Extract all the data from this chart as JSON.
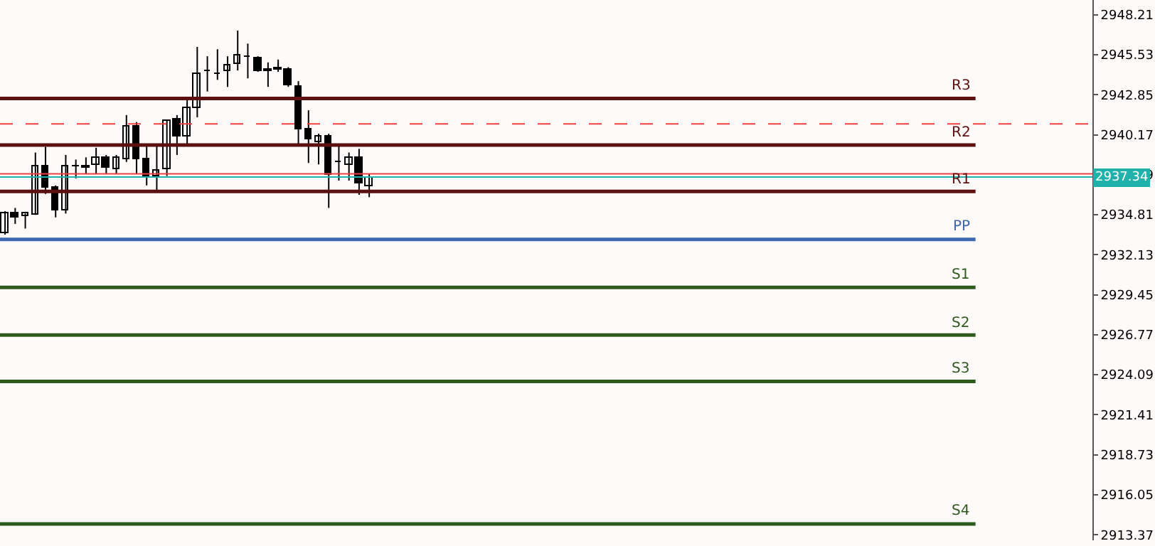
{
  "chart_data": {
    "type": "candlestick",
    "categories": [
      null,
      null,
      null,
      null,
      null,
      null,
      null,
      null,
      null,
      null,
      null,
      null,
      null,
      null,
      null,
      null,
      null,
      null,
      null,
      null,
      null,
      null,
      null,
      null,
      null,
      null,
      null,
      null,
      null,
      null,
      null,
      null,
      null,
      null,
      null,
      null,
      null,
      null,
      null,
      null,
      null,
      null,
      null,
      null,
      null,
      null,
      null,
      null,
      null,
      null,
      null,
      null,
      null,
      null,
      null,
      null,
      null,
      null,
      null,
      null,
      null,
      null,
      null,
      null,
      null,
      null,
      null,
      null,
      null,
      null,
      null,
      null,
      null,
      null,
      null,
      null,
      null,
      null,
      null,
      null,
      null,
      null,
      null,
      null,
      null,
      null,
      null,
      null,
      null,
      null,
      null,
      null,
      null,
      null,
      null,
      null,
      null,
      null,
      null,
      null,
      null,
      null,
      null,
      null,
      null,
      null,
      null,
      null
    ],
    "ohlc": [
      [
        2933.57,
        2935.05,
        2933.48,
        2934.89
      ],
      [
        2934.89,
        2935.27,
        2934.2,
        2934.64
      ],
      [
        2934.7,
        2934.89,
        2933.89,
        2934.89
      ],
      [
        2934.83,
        2938.98,
        2934.8,
        2938.04
      ],
      [
        2938.04,
        2939.36,
        2936.21,
        2936.59
      ],
      [
        2936.59,
        2936.78,
        2934.64,
        2935.14
      ],
      [
        2935.14,
        2938.82,
        2934.89,
        2938.04
      ],
      [
        2938.04,
        2938.51,
        2937.25,
        2938.1
      ],
      [
        2938.0,
        2938.66,
        2937.57,
        2938.04
      ],
      [
        2938.16,
        2939.3,
        2937.57,
        2938.66
      ],
      [
        2938.61,
        2938.82,
        2937.57,
        2937.97
      ],
      [
        2937.85,
        2938.82,
        2937.57,
        2938.61
      ],
      [
        2938.51,
        2941.49,
        2938.35,
        2940.71
      ],
      [
        2940.71,
        2941.02,
        2937.57,
        2938.57
      ],
      [
        2938.51,
        2939.45,
        2936.78,
        2937.41
      ],
      [
        2937.41,
        2939.45,
        2936.46,
        2937.79
      ],
      [
        2937.88,
        2941.18,
        2937.41,
        2941.12
      ],
      [
        2941.18,
        2941.49,
        2938.82,
        2940.08
      ],
      [
        2940.08,
        2942.6,
        2939.45,
        2941.96
      ],
      [
        2941.96,
        2946.06,
        2941.34,
        2944.27
      ],
      [
        2944.4,
        2945.43,
        2943.07,
        2944.48
      ],
      [
        2944.27,
        2945.9,
        2943.85,
        2944.2
      ],
      [
        2944.42,
        2945.43,
        2943.38,
        2944.8
      ],
      [
        2944.89,
        2947.15,
        2944.48,
        2945.52
      ],
      [
        2945.4,
        2946.28,
        2943.95,
        2945.43
      ],
      [
        2945.33,
        2945.43,
        2944.39,
        2944.48
      ],
      [
        2944.5,
        2945.02,
        2943.38,
        2944.45
      ],
      [
        2944.6,
        2945.21,
        2944.39,
        2944.58
      ],
      [
        2944.58,
        2944.7,
        2943.38,
        2943.45
      ],
      [
        2943.38,
        2943.76,
        2939.55,
        2940.49
      ],
      [
        2940.49,
        2941.81,
        2938.28,
        2939.86
      ],
      [
        2939.67,
        2940.24,
        2938.19,
        2940.08
      ],
      [
        2940.08,
        2940.24,
        2935.27,
        2937.47
      ],
      [
        2938.35,
        2939.45,
        2937.1,
        2938.3
      ],
      [
        2938.19,
        2938.98,
        2937.1,
        2938.61
      ],
      [
        2938.61,
        2939.23,
        2936.15,
        2936.94
      ],
      [
        2936.72,
        2937.57,
        2935.99,
        2937.34
      ],
      null,
      null,
      null,
      null,
      null,
      null,
      null,
      null,
      null,
      null,
      null,
      null,
      null,
      null,
      null,
      null,
      null,
      null,
      null,
      null,
      null,
      null,
      null,
      null,
      null,
      null,
      null,
      null,
      null,
      null,
      null,
      null,
      null,
      null,
      null,
      null,
      null,
      null,
      null,
      null,
      null,
      null,
      null,
      null,
      null,
      null,
      null,
      null,
      null,
      null,
      null,
      null,
      null,
      null,
      null,
      null,
      null,
      null,
      null,
      null,
      null,
      null,
      null,
      null,
      null,
      null,
      null,
      null,
      null,
      null,
      null
    ],
    "ylim": [
      2913.0,
      2949.2
    ],
    "yticks": [
      2948.21,
      2945.53,
      2942.85,
      2940.17,
      2937.49,
      2934.81,
      2932.13,
      2929.45,
      2926.77,
      2924.09,
      2921.41,
      2918.73,
      2916.05,
      2913.37
    ],
    "tick_labels": "y",
    "ref_lines": [
      {
        "axis": "y",
        "value": 2942.6,
        "label": "R3",
        "color": "#5c1010",
        "line_style": "solid"
      },
      {
        "axis": "y",
        "value": 2939.48,
        "label": "R2",
        "color": "#5c1010",
        "line_style": "solid"
      },
      {
        "axis": "y",
        "value": 2936.37,
        "label": "R1",
        "color": "#5c1010",
        "line_style": "solid"
      },
      {
        "axis": "y",
        "value": 2933.16,
        "label": "PP",
        "color": "#3b68b0",
        "line_style": "solid"
      },
      {
        "axis": "y",
        "value": 2929.95,
        "label": "S1",
        "color": "#2e5a1e",
        "line_style": "solid"
      },
      {
        "axis": "y",
        "value": 2926.75,
        "label": "S2",
        "color": "#2e5a1e",
        "line_style": "solid"
      },
      {
        "axis": "y",
        "value": 2923.64,
        "label": "S3",
        "color": "#2e5a1e",
        "line_style": "solid"
      },
      {
        "axis": "y",
        "value": 2914.1,
        "label": "S4",
        "color": "#2e5a1e",
        "line_style": "solid"
      },
      {
        "axis": "y",
        "value": 2940.9,
        "color": "#f04040",
        "line_style": "dashed"
      },
      {
        "axis": "y",
        "value": 2937.55,
        "color": "#f04040",
        "line_style": "solid"
      },
      {
        "axis": "y",
        "value": 2937.34,
        "label": "2937.34",
        "color": "#20b2aa",
        "line_style": "solid"
      }
    ]
  }
}
